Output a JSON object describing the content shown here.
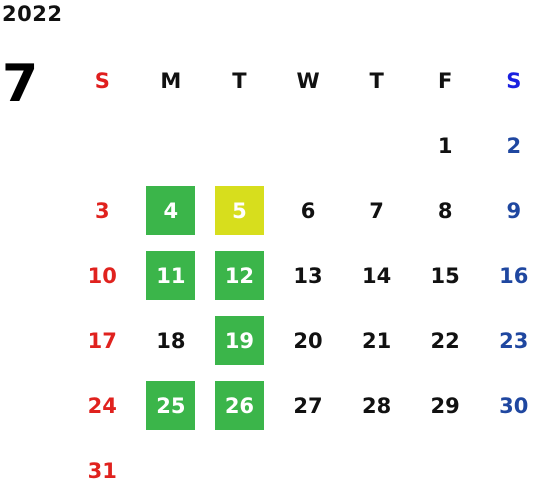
{
  "year": "2022",
  "month": "7",
  "colors": {
    "sunday": "#e0221e",
    "saturday": "#1f47a0",
    "highlight_green": "#3bb54a",
    "highlight_yellow": "#d7de1d"
  },
  "weekdays": [
    "S",
    "M",
    "T",
    "W",
    "T",
    "F",
    "S"
  ],
  "weeks": [
    [
      {
        "day": "",
        "mark": ""
      },
      {
        "day": "",
        "mark": ""
      },
      {
        "day": "",
        "mark": ""
      },
      {
        "day": "",
        "mark": ""
      },
      {
        "day": "",
        "mark": ""
      },
      {
        "day": "1",
        "mark": ""
      },
      {
        "day": "2",
        "mark": ""
      }
    ],
    [
      {
        "day": "3",
        "mark": ""
      },
      {
        "day": "4",
        "mark": "green"
      },
      {
        "day": "5",
        "mark": "yellow"
      },
      {
        "day": "6",
        "mark": ""
      },
      {
        "day": "7",
        "mark": ""
      },
      {
        "day": "8",
        "mark": ""
      },
      {
        "day": "9",
        "mark": ""
      }
    ],
    [
      {
        "day": "10",
        "mark": ""
      },
      {
        "day": "11",
        "mark": "green"
      },
      {
        "day": "12",
        "mark": "green"
      },
      {
        "day": "13",
        "mark": ""
      },
      {
        "day": "14",
        "mark": ""
      },
      {
        "day": "15",
        "mark": ""
      },
      {
        "day": "16",
        "mark": ""
      }
    ],
    [
      {
        "day": "17",
        "mark": ""
      },
      {
        "day": "18",
        "mark": ""
      },
      {
        "day": "19",
        "mark": "green"
      },
      {
        "day": "20",
        "mark": ""
      },
      {
        "day": "21",
        "mark": ""
      },
      {
        "day": "22",
        "mark": ""
      },
      {
        "day": "23",
        "mark": ""
      }
    ],
    [
      {
        "day": "24",
        "mark": ""
      },
      {
        "day": "25",
        "mark": "green"
      },
      {
        "day": "26",
        "mark": "green"
      },
      {
        "day": "27",
        "mark": ""
      },
      {
        "day": "28",
        "mark": ""
      },
      {
        "day": "29",
        "mark": ""
      },
      {
        "day": "30",
        "mark": ""
      }
    ],
    [
      {
        "day": "31",
        "mark": ""
      },
      {
        "day": "",
        "mark": ""
      },
      {
        "day": "",
        "mark": ""
      },
      {
        "day": "",
        "mark": ""
      },
      {
        "day": "",
        "mark": ""
      },
      {
        "day": "",
        "mark": ""
      },
      {
        "day": "",
        "mark": ""
      }
    ]
  ]
}
